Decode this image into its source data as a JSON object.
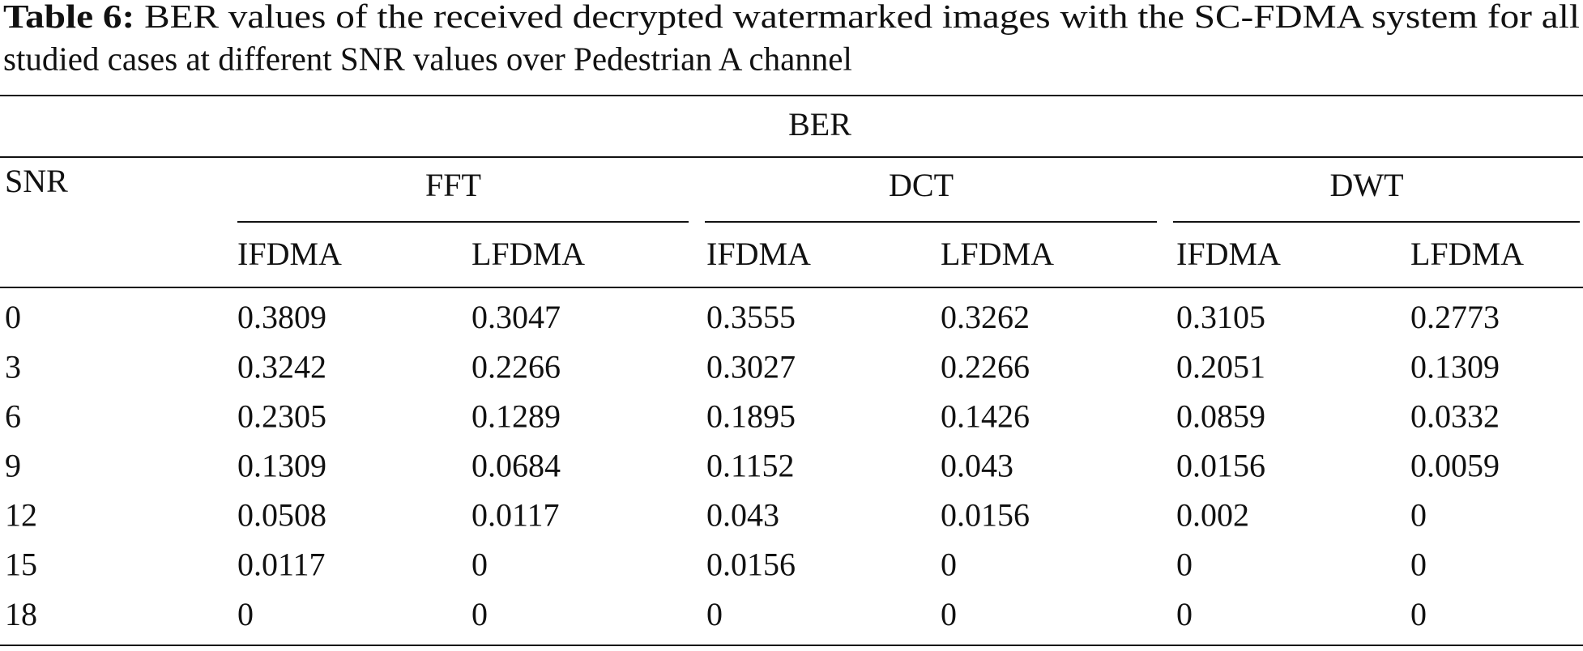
{
  "caption": {
    "label": "Table 6:",
    "text_line1": "BER values of the received decrypted watermarked images with the SC-FDMA system for all",
    "text_line2": "studied cases at different SNR values over Pedestrian A channel"
  },
  "table": {
    "super_header": "BER",
    "row_header": "SNR",
    "groups": [
      {
        "name": "FFT",
        "columns": [
          "IFDMA",
          "LFDMA"
        ]
      },
      {
        "name": "DCT",
        "columns": [
          "IFDMA",
          "LFDMA"
        ]
      },
      {
        "name": "DWT",
        "columns": [
          "IFDMA",
          "LFDMA"
        ]
      }
    ],
    "rows": [
      [
        "0",
        "0.3809",
        "0.3047",
        "0.3555",
        "0.3262",
        "0.3105",
        "0.2773"
      ],
      [
        "3",
        "0.3242",
        "0.2266",
        "0.3027",
        "0.2266",
        "0.2051",
        "0.1309"
      ],
      [
        "6",
        "0.2305",
        "0.1289",
        "0.1895",
        "0.1426",
        "0.0859",
        "0.0332"
      ],
      [
        "9",
        "0.1309",
        "0.0684",
        "0.1152",
        "0.043",
        "0.0156",
        "0.0059"
      ],
      [
        "12",
        "0.0508",
        "0.0117",
        "0.043",
        "0.0156",
        "0.002",
        "0"
      ],
      [
        "15",
        "0.0117",
        "0",
        "0.0156",
        "0",
        "0",
        "0"
      ],
      [
        "18",
        "0",
        "0",
        "0",
        "0",
        "0",
        "0"
      ]
    ]
  }
}
